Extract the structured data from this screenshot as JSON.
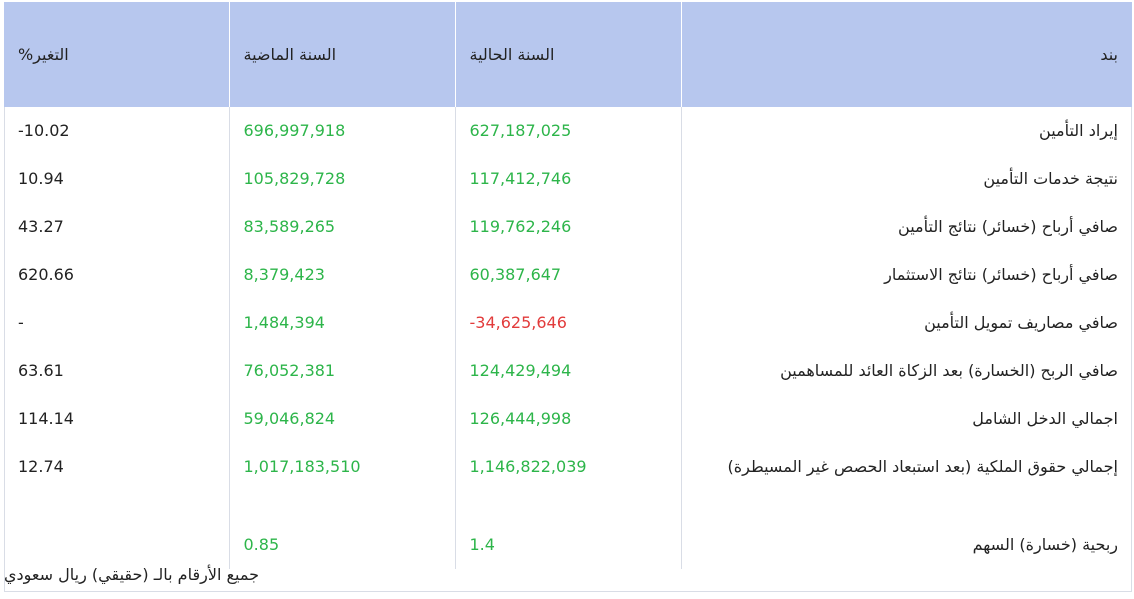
{
  "header": {
    "item": "بند",
    "current_year": "السنة الحالية",
    "last_year": "السنة الماضية",
    "change": "التغير%"
  },
  "rows": [
    {
      "label": "إيراد التأمين",
      "current": "627,187,025",
      "last": "696,997,918",
      "change": "10.02-"
    },
    {
      "label": "نتيجة خدمات التأمين",
      "current": "117,412,746",
      "last": "105,829,728",
      "change": "10.94"
    },
    {
      "label": "صافي أرباح (خسائر) نتائج التأمين",
      "current": "119,762,246",
      "last": "83,589,265",
      "change": "43.27"
    },
    {
      "label": "صافي أرباح (خسائر) نتائج الاستثمار",
      "current": "60,387,647",
      "last": "8,379,423",
      "change": "620.66"
    },
    {
      "label": "صافي مصاريف تمويل التأمين",
      "current": "34,625,646-",
      "last": "1,484,394",
      "change": "-"
    },
    {
      "label": "صافي الربح (الخسارة) بعد الزكاة العائد للمساهمين",
      "current": "124,429,494",
      "last": "76,052,381",
      "change": "63.61"
    },
    {
      "label": "اجمالي الدخل الشامل",
      "current": "126,444,998",
      "last": "59,046,824",
      "change": "114.14"
    },
    {
      "label": "إجمالي حقوق الملكية (بعد استبعاد الحصص غير المسيطرة)",
      "current": "1,146,822,039",
      "last": "1,017,183,510",
      "change": "12.74"
    },
    {
      "label": "ربحية (خسارة) السهم",
      "current": "1.4",
      "last": "0.85",
      "change": ""
    }
  ],
  "footer_note": "جميع الأرقام بالـ (حقيقي) ريال سعودي",
  "colors": {
    "header_bg": "#b7c7ee",
    "positive": "#2db54a",
    "negative": "#e23b3b"
  }
}
